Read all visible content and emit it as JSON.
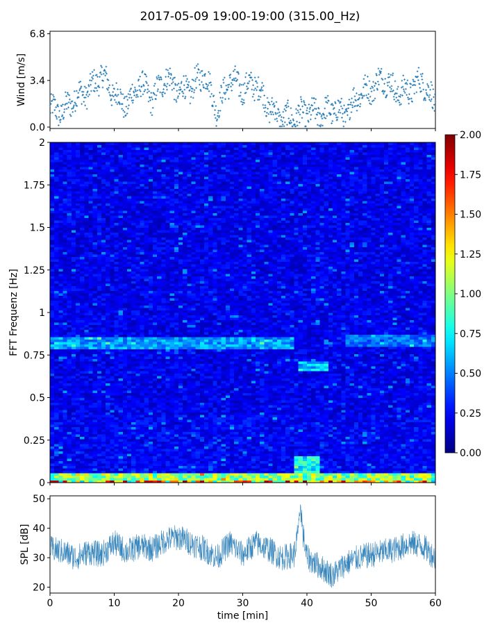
{
  "title": "2017-05-09 19:00-19:00 (315.00_Hz)",
  "chart_data": [
    {
      "type": "scatter",
      "name": "wind",
      "ylabel": "Wind [m/s]",
      "xlabel": "",
      "xlim": [
        0,
        60
      ],
      "ylim": [
        0,
        6.8
      ],
      "yticks": [
        "0.0",
        "3.4",
        "6.8"
      ],
      "ytick_values": [
        0.0,
        3.4,
        6.8
      ],
      "color": "#1f77b4",
      "x": [
        0,
        2,
        4,
        6,
        8,
        10,
        12,
        14,
        16,
        18,
        20,
        22,
        24,
        26,
        28,
        30,
        32,
        34,
        36,
        38,
        40,
        42,
        44,
        46,
        48,
        50,
        52,
        54,
        56,
        58,
        60
      ],
      "values": [
        1.3,
        1.1,
        2.2,
        2.6,
        3.8,
        2.4,
        1.6,
        3.2,
        2.0,
        3.7,
        2.6,
        2.8,
        4.0,
        1.2,
        3.5,
        2.8,
        3.2,
        1.5,
        0.6,
        0.7,
        1.1,
        0.9,
        1.3,
        0.9,
        2.4,
        2.8,
        3.6,
        2.5,
        2.7,
        3.4,
        1.6
      ]
    },
    {
      "type": "heatmap",
      "name": "spectrogram",
      "ylabel": "FFT Frequenz [Hz]",
      "xlim": [
        0,
        60
      ],
      "ylim": [
        0,
        2
      ],
      "yticks": [
        "0",
        "0.25",
        "0.5",
        "0.75",
        "1",
        "1.25",
        "1.5",
        "1.75",
        "2"
      ],
      "ytick_values": [
        0,
        0.25,
        0.5,
        0.75,
        1,
        1.25,
        1.5,
        1.75,
        2
      ],
      "colormap": "jet",
      "clim": [
        0,
        2
      ],
      "colorbar_ticks": [
        "0.00",
        "0.25",
        "0.50",
        "0.75",
        "1.00",
        "1.25",
        "1.50",
        "1.75",
        "2.00"
      ],
      "colorbar_values": [
        0,
        0.25,
        0.5,
        0.75,
        1.0,
        1.25,
        1.5,
        1.75,
        2.0
      ],
      "features": [
        {
          "label": "low-frequency band",
          "freq": [
            0,
            0.05
          ],
          "time": [
            0,
            60
          ],
          "intensity": 1.2
        },
        {
          "label": "band near 0.82 Hz",
          "freq": [
            0.78,
            0.86
          ],
          "time": [
            0,
            38
          ],
          "intensity": 0.65
        },
        {
          "label": "band near 0.69 Hz",
          "freq": [
            0.66,
            0.72
          ],
          "time": [
            39,
            43
          ],
          "intensity": 0.75
        },
        {
          "label": "band near 0.83 Hz",
          "freq": [
            0.8,
            0.87
          ],
          "time": [
            46,
            60
          ],
          "intensity": 0.55
        },
        {
          "label": "burst near 0.1 Hz",
          "freq": [
            0.05,
            0.15
          ],
          "time": [
            38,
            42
          ],
          "intensity": 0.9
        }
      ]
    },
    {
      "type": "line",
      "name": "spl",
      "ylabel": "SPL [dB]",
      "xlabel": "time [min]",
      "xlim": [
        0,
        60
      ],
      "ylim": [
        18,
        51
      ],
      "yticks": [
        "20",
        "30",
        "40",
        "50"
      ],
      "ytick_values": [
        20,
        30,
        40,
        50
      ],
      "xticks": [
        "0",
        "10",
        "20",
        "30",
        "40",
        "50",
        "60"
      ],
      "xtick_values": [
        0,
        10,
        20,
        30,
        40,
        50,
        60
      ],
      "color": "#1f77b4",
      "x": [
        0,
        2,
        4,
        6,
        8,
        10,
        12,
        14,
        16,
        18,
        20,
        22,
        24,
        26,
        28,
        30,
        32,
        34,
        36,
        38,
        39,
        40,
        42,
        44,
        46,
        48,
        50,
        52,
        54,
        56,
        58,
        60
      ],
      "values": [
        33,
        32,
        30,
        32,
        31,
        35,
        32,
        34,
        33,
        36,
        37,
        35,
        33,
        30,
        35,
        31,
        35,
        33,
        30,
        31,
        43,
        30,
        27,
        24,
        28,
        30,
        31,
        32,
        33,
        35,
        34,
        30
      ]
    }
  ]
}
